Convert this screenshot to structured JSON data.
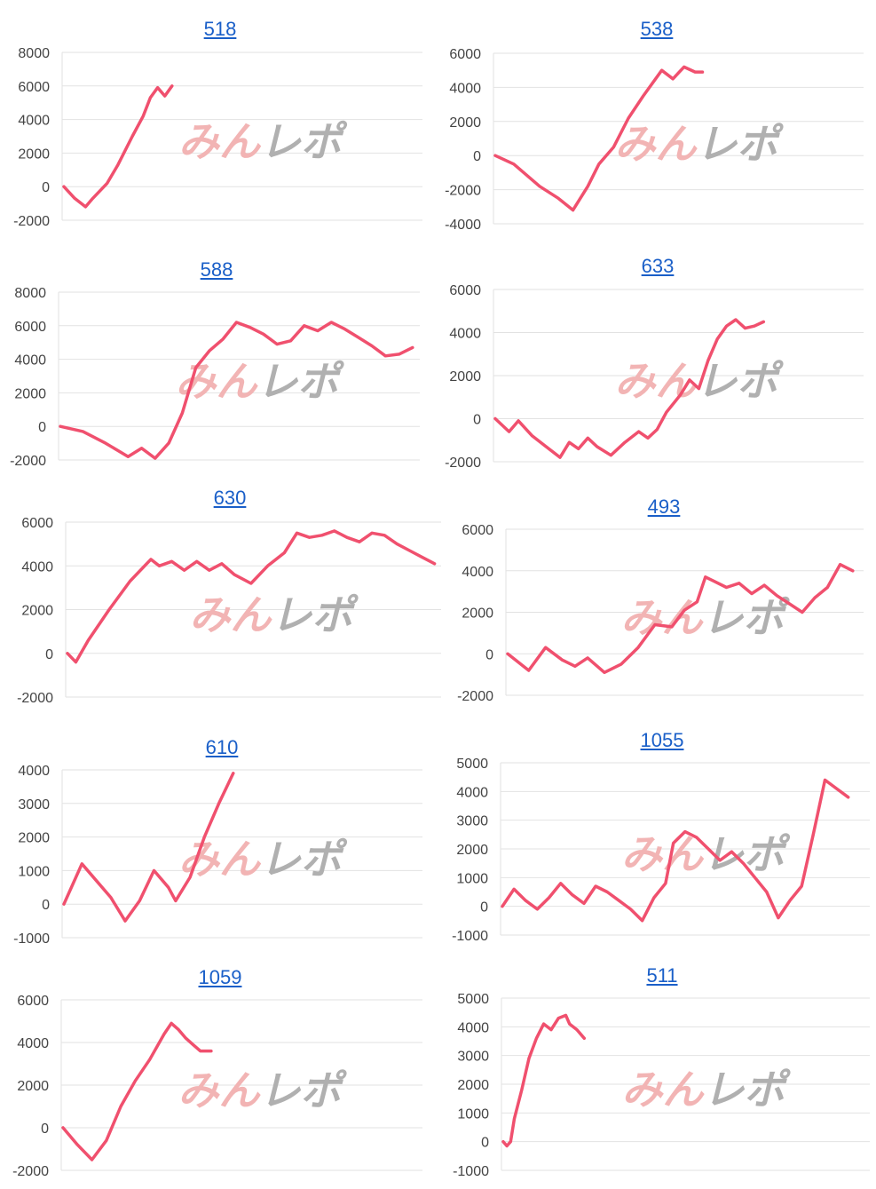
{
  "colors": {
    "line": "#f0506e",
    "grid": "#e2e2e2",
    "title": "#1a5fc8",
    "watermark_pink": "#f2b4b4",
    "watermark_gray": "#b0b0b0"
  },
  "watermark_text": "みんレポ",
  "chart_data": [
    {
      "type": "line",
      "title": "518",
      "ylim": [
        -2000,
        8000
      ],
      "yticks": [
        -2000,
        0,
        2000,
        4000,
        6000,
        8000
      ],
      "x": [
        0,
        3,
        6,
        8,
        12,
        15,
        19,
        22,
        24,
        26,
        28,
        30
      ],
      "y": [
        0,
        -700,
        -1200,
        -700,
        200,
        1300,
        3000,
        4200,
        5300,
        5900,
        5400,
        6000
      ]
    },
    {
      "type": "line",
      "title": "538",
      "ylim": [
        -4000,
        6000
      ],
      "yticks": [
        -4000,
        -2000,
        0,
        2000,
        4000,
        6000
      ],
      "x": [
        0,
        5,
        12,
        17,
        21,
        25,
        28,
        32,
        36,
        40,
        45,
        48,
        51,
        54,
        56
      ],
      "y": [
        0,
        -500,
        -1800,
        -2500,
        -3200,
        -1800,
        -500,
        500,
        2200,
        3500,
        5000,
        4500,
        5200,
        4900,
        4900
      ]
    },
    {
      "type": "line",
      "title": "588",
      "ylim": [
        -2000,
        8000
      ],
      "yticks": [
        -2000,
        0,
        2000,
        4000,
        6000,
        8000
      ],
      "x": [
        0,
        5,
        10,
        15,
        18,
        21,
        24,
        27,
        30,
        33,
        36,
        39,
        42,
        45,
        48,
        51,
        54,
        57,
        60,
        63,
        66,
        69,
        72,
        75,
        78
      ],
      "y": [
        0,
        -300,
        -1000,
        -1800,
        -1300,
        -1900,
        -1000,
        800,
        3500,
        4500,
        5200,
        6200,
        5900,
        5500,
        4900,
        5100,
        6000,
        5700,
        6200,
        5800,
        5300,
        4800,
        4200,
        4300,
        4700
      ]
    },
    {
      "type": "line",
      "title": "633",
      "ylim": [
        -2000,
        6000
      ],
      "yticks": [
        -2000,
        0,
        2000,
        4000,
        6000
      ],
      "x": [
        0,
        3,
        5,
        8,
        11,
        14,
        16,
        18,
        20,
        22,
        25,
        28,
        31,
        33,
        35,
        37,
        40,
        42,
        44,
        46,
        48,
        50,
        52,
        54,
        56,
        58
      ],
      "y": [
        0,
        -600,
        -100,
        -800,
        -1300,
        -1800,
        -1100,
        -1400,
        -900,
        -1300,
        -1700,
        -1100,
        -600,
        -900,
        -500,
        300,
        1100,
        1800,
        1400,
        2700,
        3700,
        4300,
        4600,
        4200,
        4300,
        4500
      ]
    },
    {
      "type": "line",
      "title": "630",
      "ylim": [
        -2000,
        6000
      ],
      "yticks": [
        -2000,
        0,
        2000,
        4000,
        6000
      ],
      "x": [
        0,
        2,
        5,
        10,
        15,
        20,
        22,
        25,
        28,
        31,
        34,
        37,
        40,
        44,
        48,
        52,
        55,
        58,
        61,
        64,
        67,
        70,
        73,
        76,
        79,
        82,
        85,
        88
      ],
      "y": [
        0,
        -400,
        600,
        2000,
        3300,
        4300,
        4000,
        4200,
        3800,
        4200,
        3800,
        4100,
        3600,
        3200,
        4000,
        4600,
        5500,
        5300,
        5400,
        5600,
        5300,
        5100,
        5500,
        5400,
        5000,
        4700,
        4400,
        4100
      ]
    },
    {
      "type": "line",
      "title": "493",
      "ylim": [
        -2000,
        6000
      ],
      "yticks": [
        -2000,
        0,
        2000,
        4000,
        6000
      ],
      "x": [
        0,
        5,
        9,
        13,
        16,
        19,
        23,
        27,
        31,
        35,
        39,
        42,
        45,
        47,
        49,
        52,
        55,
        58,
        61,
        64,
        67,
        70,
        73,
        76,
        79,
        82
      ],
      "y": [
        0,
        -800,
        300,
        -300,
        -600,
        -200,
        -900,
        -500,
        300,
        1400,
        1300,
        2100,
        2500,
        3700,
        3500,
        3200,
        3400,
        2900,
        3300,
        2800,
        2400,
        2000,
        2700,
        3200,
        4300,
        4000
      ]
    },
    {
      "type": "line",
      "title": "610",
      "ylim": [
        -1000,
        4000
      ],
      "yticks": [
        -1000,
        0,
        1000,
        2000,
        3000,
        4000
      ],
      "x": [
        0,
        5,
        9,
        13,
        17,
        21,
        25,
        29,
        31,
        35,
        39,
        43,
        47
      ],
      "y": [
        0,
        1200,
        700,
        200,
        -500,
        100,
        1000,
        500,
        100,
        800,
        2000,
        3000,
        3900
      ]
    },
    {
      "type": "line",
      "title": "1055",
      "ylim": [
        -1000,
        5000
      ],
      "yticks": [
        -1000,
        0,
        1000,
        2000,
        3000,
        4000,
        5000
      ],
      "x": [
        0,
        3,
        6,
        9,
        12,
        15,
        18,
        21,
        24,
        27,
        30,
        33,
        36,
        39,
        42,
        44,
        47,
        50,
        53,
        56,
        59,
        62,
        65,
        68,
        71,
        74,
        77,
        80,
        83,
        86,
        89
      ],
      "y": [
        0,
        600,
        200,
        -100,
        300,
        800,
        400,
        100,
        700,
        500,
        200,
        -100,
        -500,
        300,
        800,
        2200,
        2600,
        2400,
        2000,
        1600,
        1900,
        1500,
        1000,
        500,
        -400,
        200,
        700,
        2500,
        4400,
        4100,
        3800
      ]
    },
    {
      "type": "line",
      "title": "1059",
      "ylim": [
        -2000,
        6000
      ],
      "yticks": [
        -2000,
        0,
        2000,
        4000,
        6000
      ],
      "x": [
        0,
        4,
        8,
        12,
        16,
        20,
        24,
        28,
        30,
        32,
        34,
        36,
        38,
        41
      ],
      "y": [
        0,
        -800,
        -1500,
        -600,
        1000,
        2200,
        3200,
        4400,
        4900,
        4600,
        4200,
        3900,
        3600,
        3600
      ]
    },
    {
      "type": "line",
      "title": "511",
      "ylim": [
        -1000,
        5000
      ],
      "yticks": [
        -1000,
        0,
        1000,
        2000,
        3000,
        4000,
        5000
      ],
      "x": [
        0,
        1,
        2,
        3,
        5,
        7,
        9,
        11,
        13,
        15,
        17,
        18,
        20,
        22
      ],
      "y": [
        0,
        -150,
        0,
        800,
        1800,
        2900,
        3600,
        4100,
        3900,
        4300,
        4400,
        4100,
        3900,
        3600
      ]
    }
  ]
}
